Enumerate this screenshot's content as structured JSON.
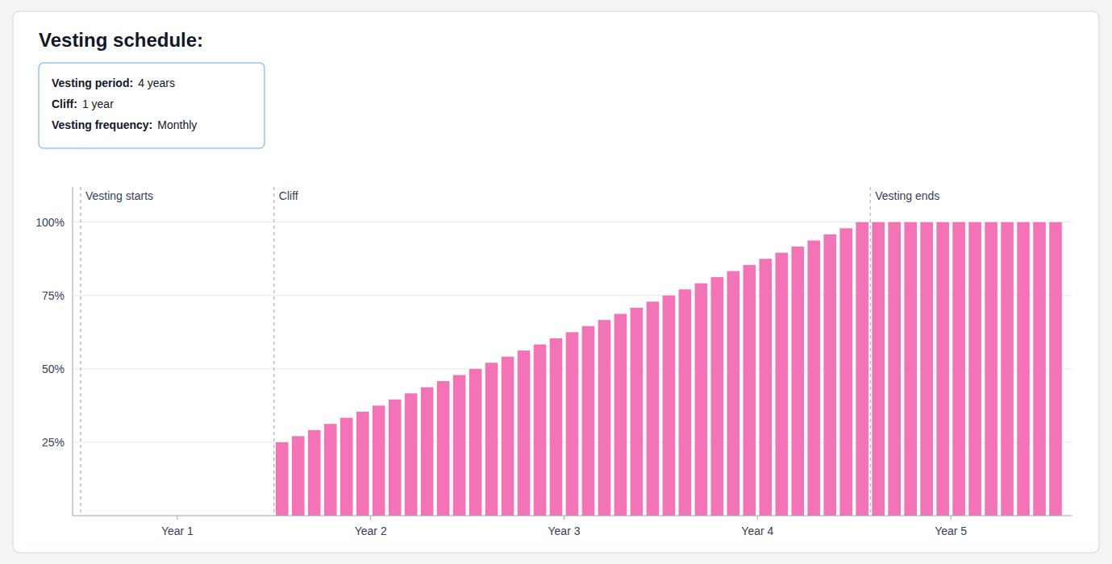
{
  "chart_data": {
    "type": "bar",
    "title": "Vesting schedule:",
    "color": "#F472B6",
    "x": [
      12,
      13,
      14,
      15,
      16,
      17,
      18,
      19,
      20,
      21,
      22,
      23,
      24,
      25,
      26,
      27,
      28,
      29,
      30,
      31,
      32,
      33,
      34,
      35,
      36,
      37,
      38,
      39,
      40,
      41,
      42,
      43,
      44,
      45,
      46,
      47,
      48,
      49,
      50,
      51,
      52,
      53,
      54,
      55,
      56,
      57,
      58,
      59,
      60
    ],
    "values": [
      25,
      27.083333333333332,
      29.166666666666668,
      31.25,
      33.33333333333333,
      35.41666666666667,
      37.5,
      39.58333333333333,
      41.66666666666667,
      43.75,
      45.83333333333333,
      47.91666666666667,
      50,
      52.083333333333336,
      54.166666666666664,
      56.25,
      58.333333333333336,
      60.416666666666664,
      62.5,
      64.58333333333334,
      66.66666666666666,
      68.75,
      70.83333333333334,
      72.91666666666666,
      75,
      77.08333333333334,
      79.16666666666666,
      81.25,
      83.33333333333334,
      85.41666666666666,
      87.5,
      89.58333333333334,
      91.66666666666666,
      93.75,
      95.83333333333334,
      97.91666666666666,
      100,
      100,
      100,
      100,
      100,
      100,
      100,
      100,
      100,
      100,
      100,
      100,
      100
    ],
    "xlim": [
      -1,
      61
    ],
    "xticks": [
      {
        "value": 5.5,
        "label": "Year 1"
      },
      {
        "value": 17.5,
        "label": "Year 2"
      },
      {
        "value": 29.5,
        "label": "Year 3"
      },
      {
        "value": 41.5,
        "label": "Year 4"
      },
      {
        "value": 53.5,
        "label": "Year 5"
      }
    ],
    "ylim": [
      0,
      112
    ],
    "yticks": [
      {
        "value": 25,
        "label": "25%"
      },
      {
        "value": 50,
        "label": "50%"
      },
      {
        "value": 75,
        "label": "75%"
      },
      {
        "value": 100,
        "label": "100%"
      }
    ],
    "grid": true,
    "annotations": [
      {
        "text": "Vesting starts",
        "x": -0.5
      },
      {
        "text": "Cliff",
        "x": 11.5
      },
      {
        "text": "Vesting ends",
        "x": 48.5
      },
      {
        "label": "Vesting period:",
        "text": "4 years"
      },
      {
        "label": "Cliff:",
        "text": "1 year"
      },
      {
        "label": "Vesting frequency:",
        "text": "Monthly"
      }
    ]
  }
}
